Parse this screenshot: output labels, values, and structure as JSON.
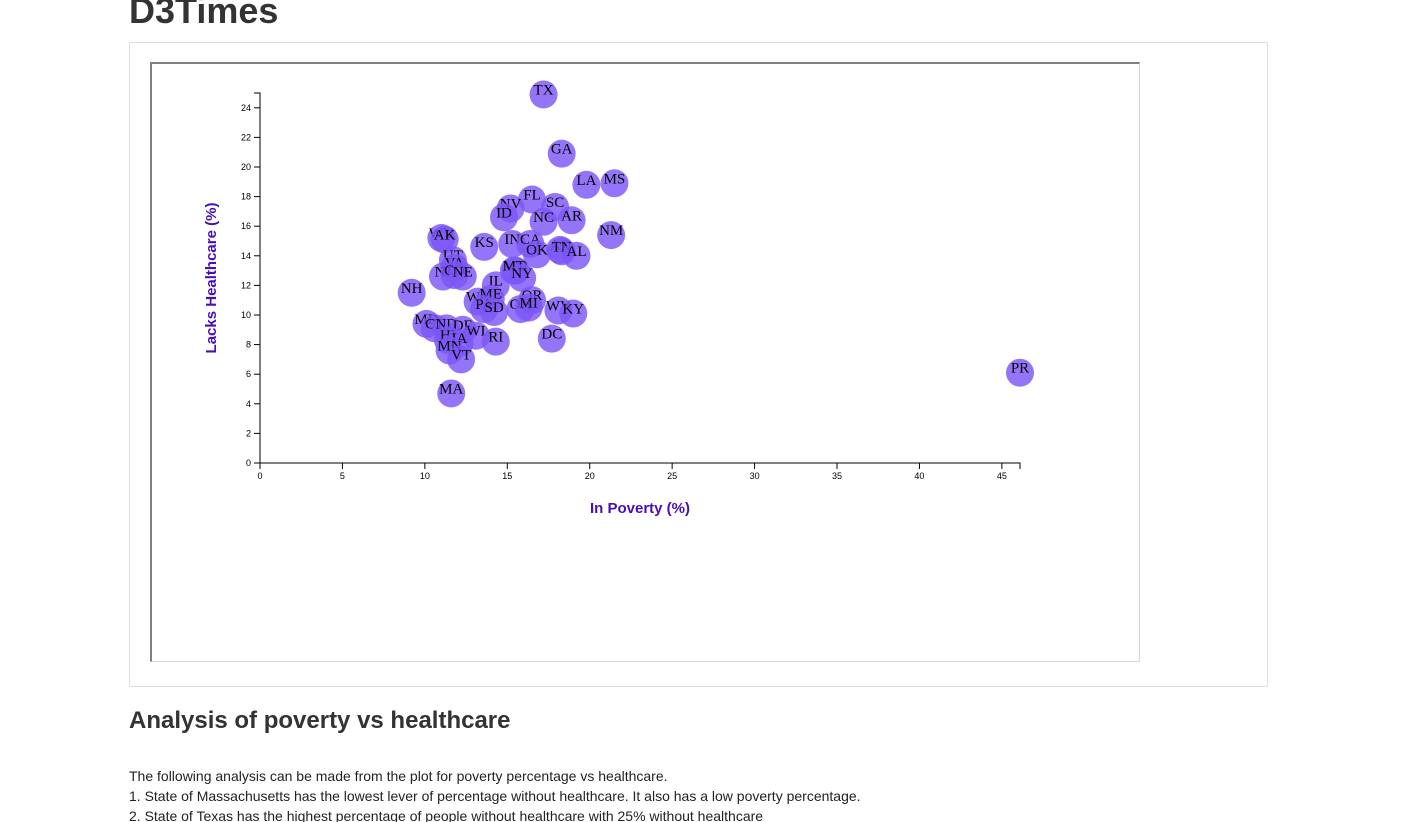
{
  "site_title": "D3Times",
  "analysis": {
    "heading": "Analysis of poverty vs healthcare",
    "lines": [
      "The following analysis can be made from the plot for poverty percentage vs healthcare.",
      "1. State of Massachusetts has the lowest lever of percentage without healthcare. It also has a low poverty percentage.",
      "2. State of Texas has the highest percentage of people without healthcare with 25% without healthcare"
    ]
  },
  "colors": {
    "marker": "#7d56f7",
    "axis_title": "#4b0db5"
  },
  "chart_data": {
    "type": "scatter",
    "title": "",
    "xlabel": "In Poverty (%)",
    "ylabel": "Lacks Healthcare (%)",
    "xlim": [
      0,
      46.1
    ],
    "ylim": [
      0,
      25
    ],
    "x_ticks": [
      "0",
      "5",
      "10",
      "15",
      "20",
      "25",
      "30",
      "35",
      "40",
      "45"
    ],
    "y_ticks": [
      "0",
      "2",
      "4",
      "6",
      "8",
      "10",
      "12",
      "14",
      "16",
      "18",
      "20",
      "22",
      "24"
    ],
    "grid": false,
    "points": [
      {
        "label": "TX",
        "x": 17.2,
        "y": 24.9
      },
      {
        "label": "GA",
        "x": 18.3,
        "y": 20.9
      },
      {
        "label": "LA",
        "x": 19.8,
        "y": 18.8
      },
      {
        "label": "MS",
        "x": 21.5,
        "y": 18.9
      },
      {
        "label": "FL",
        "x": 16.5,
        "y": 17.8
      },
      {
        "label": "NV",
        "x": 15.2,
        "y": 17.2
      },
      {
        "label": "SC",
        "x": 17.9,
        "y": 17.3
      },
      {
        "label": "ID",
        "x": 14.8,
        "y": 16.6
      },
      {
        "label": "NC",
        "x": 17.2,
        "y": 16.3
      },
      {
        "label": "AR",
        "x": 18.9,
        "y": 16.4
      },
      {
        "label": "NM",
        "x": 21.3,
        "y": 15.4
      },
      {
        "label": "WY",
        "x": 11.0,
        "y": 15.2
      },
      {
        "label": "AK",
        "x": 11.2,
        "y": 15.1
      },
      {
        "label": "IN",
        "x": 15.3,
        "y": 14.8
      },
      {
        "label": "CA",
        "x": 16.4,
        "y": 14.8
      },
      {
        "label": "KS",
        "x": 13.6,
        "y": 14.6
      },
      {
        "label": "AZ",
        "x": 18.2,
        "y": 14.4
      },
      {
        "label": "TN",
        "x": 18.3,
        "y": 14.3
      },
      {
        "label": "OK",
        "x": 16.8,
        "y": 14.1
      },
      {
        "label": "AL",
        "x": 19.2,
        "y": 14.0
      },
      {
        "label": "UT",
        "x": 11.7,
        "y": 13.7
      },
      {
        "label": "VA",
        "x": 11.8,
        "y": 13.2
      },
      {
        "label": "MO",
        "x": 15.5,
        "y": 13.0
      },
      {
        "label": "MT",
        "x": 15.4,
        "y": 13.0
      },
      {
        "label": "NJ",
        "x": 11.1,
        "y": 12.6
      },
      {
        "label": "CO",
        "x": 11.8,
        "y": 12.7
      },
      {
        "label": "NE",
        "x": 12.3,
        "y": 12.6
      },
      {
        "label": "NY",
        "x": 15.9,
        "y": 12.5
      },
      {
        "label": "IL",
        "x": 14.3,
        "y": 12.0
      },
      {
        "label": "NH",
        "x": 9.2,
        "y": 11.5
      },
      {
        "label": "WA",
        "x": 13.2,
        "y": 10.9
      },
      {
        "label": "ME",
        "x": 14.0,
        "y": 11.1
      },
      {
        "label": "OR",
        "x": 16.5,
        "y": 11.0
      },
      {
        "label": "PA",
        "x": 13.6,
        "y": 10.4
      },
      {
        "label": "SD",
        "x": 14.2,
        "y": 10.2
      },
      {
        "label": "OH",
        "x": 15.8,
        "y": 10.4
      },
      {
        "label": "MI",
        "x": 16.3,
        "y": 10.5
      },
      {
        "label": "WV",
        "x": 18.1,
        "y": 10.3
      },
      {
        "label": "KY",
        "x": 19.0,
        "y": 10.1
      },
      {
        "label": "MD",
        "x": 10.1,
        "y": 9.4
      },
      {
        "label": "CT",
        "x": 10.6,
        "y": 9.1
      },
      {
        "label": "ND",
        "x": 11.3,
        "y": 9.1
      },
      {
        "label": "DE",
        "x": 12.3,
        "y": 9.0
      },
      {
        "label": "WI",
        "x": 13.1,
        "y": 8.6
      },
      {
        "label": "RI",
        "x": 14.3,
        "y": 8.2
      },
      {
        "label": "DC",
        "x": 17.7,
        "y": 8.4
      },
      {
        "label": "HI",
        "x": 11.4,
        "y": 8.3
      },
      {
        "label": "IA",
        "x": 12.1,
        "y": 8.1
      },
      {
        "label": "MN",
        "x": 11.5,
        "y": 7.6
      },
      {
        "label": "VT",
        "x": 12.2,
        "y": 7.0
      },
      {
        "label": "MA",
        "x": 11.6,
        "y": 4.7
      },
      {
        "label": "PR",
        "x": 46.1,
        "y": 6.1
      }
    ]
  }
}
